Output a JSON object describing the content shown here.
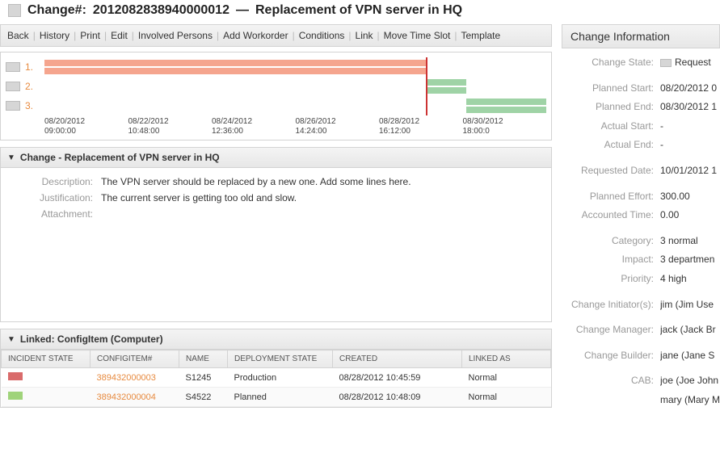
{
  "title": {
    "prefix": "Change#:",
    "number": "2012082838940000012",
    "sep": "—",
    "name": "Replacement of VPN server in HQ"
  },
  "toolbar": [
    "Back",
    "History",
    "Print",
    "Edit",
    "Involved Persons",
    "Add Workorder",
    "Conditions",
    "Link",
    "Move Time Slot",
    "Template"
  ],
  "timeline": {
    "colors": {
      "bar1": "#f5a58e",
      "bar2": "#9fd3a6",
      "bar3": "#9fd3a6",
      "vline": "#c33"
    },
    "vline_pos_pct": 76,
    "rows": [
      {
        "idx": "1.",
        "left_pct": 0,
        "width_pct": 76,
        "color": "#f5a58e",
        "double": true
      },
      {
        "idx": "2.",
        "left_pct": 76,
        "width_pct": 8,
        "color": "#9fd3a6",
        "double": true
      },
      {
        "idx": "3.",
        "left_pct": 84,
        "width_pct": 16,
        "color": "#9fd3a6",
        "double": true
      }
    ],
    "ticks": [
      {
        "d": "08/20/2012",
        "t": "09:00:00"
      },
      {
        "d": "08/22/2012",
        "t": "10:48:00"
      },
      {
        "d": "08/24/2012",
        "t": "12:36:00"
      },
      {
        "d": "08/26/2012",
        "t": "14:24:00"
      },
      {
        "d": "08/28/2012",
        "t": "16:12:00"
      },
      {
        "d": "08/30/2012",
        "t": "18:00:0"
      }
    ]
  },
  "change_panel": {
    "title": "Change - Replacement of VPN server in HQ",
    "fields": {
      "description_label": "Description:",
      "description": "The VPN server should be replaced by a new one. Add some lines here.",
      "justification_label": "Justification:",
      "justification": "The current server is getting too old and slow.",
      "attachment_label": "Attachment:",
      "attachment": ""
    }
  },
  "linked_panel": {
    "title": "Linked: ConfigItem (Computer)",
    "columns": [
      "Incident State",
      "ConfigItem#",
      "Name",
      "Deployment State",
      "Created",
      "Linked as"
    ],
    "col_widths": [
      "110px",
      "110px",
      "60px",
      "130px",
      "160px",
      "auto"
    ],
    "rows": [
      {
        "state_color": "#d96b6b",
        "ci": "389432000003",
        "name": "S1245",
        "deploy": "Production",
        "created": "08/28/2012 10:45:59",
        "linked": "Normal"
      },
      {
        "state_color": "#9fd37a",
        "ci": "389432000004",
        "name": "S4522",
        "deploy": "Planned",
        "created": "08/28/2012 10:48:09",
        "linked": "Normal"
      }
    ]
  },
  "info": {
    "header": "Change Information",
    "rows": [
      {
        "k": "Change State:",
        "v": "Request",
        "badge": true
      },
      {
        "gap": true
      },
      {
        "k": "Planned Start:",
        "v": "08/20/2012 0"
      },
      {
        "k": "Planned End:",
        "v": "08/30/2012 1"
      },
      {
        "k": "Actual Start:",
        "v": "-"
      },
      {
        "k": "Actual End:",
        "v": "-"
      },
      {
        "gap": true
      },
      {
        "k": "Requested Date:",
        "v": "10/01/2012 1"
      },
      {
        "gap": true
      },
      {
        "k": "Planned Effort:",
        "v": "300.00"
      },
      {
        "k": "Accounted Time:",
        "v": "0.00"
      },
      {
        "gap": true
      },
      {
        "k": "Category:",
        "v": "3 normal"
      },
      {
        "k": "Impact:",
        "v": "3 departmen"
      },
      {
        "k": "Priority:",
        "v": "4 high"
      },
      {
        "gap": true
      },
      {
        "k": "Change Initiator(s):",
        "v": "jim (Jim Use"
      },
      {
        "gap": true
      },
      {
        "k": "Change Manager:",
        "v": "jack (Jack Br"
      },
      {
        "gap": true
      },
      {
        "k": "Change Builder:",
        "v": "jane (Jane S"
      },
      {
        "gap": true
      },
      {
        "k": "CAB:",
        "v": "joe (Joe John"
      },
      {
        "k": "",
        "v": "mary (Mary M"
      }
    ]
  }
}
